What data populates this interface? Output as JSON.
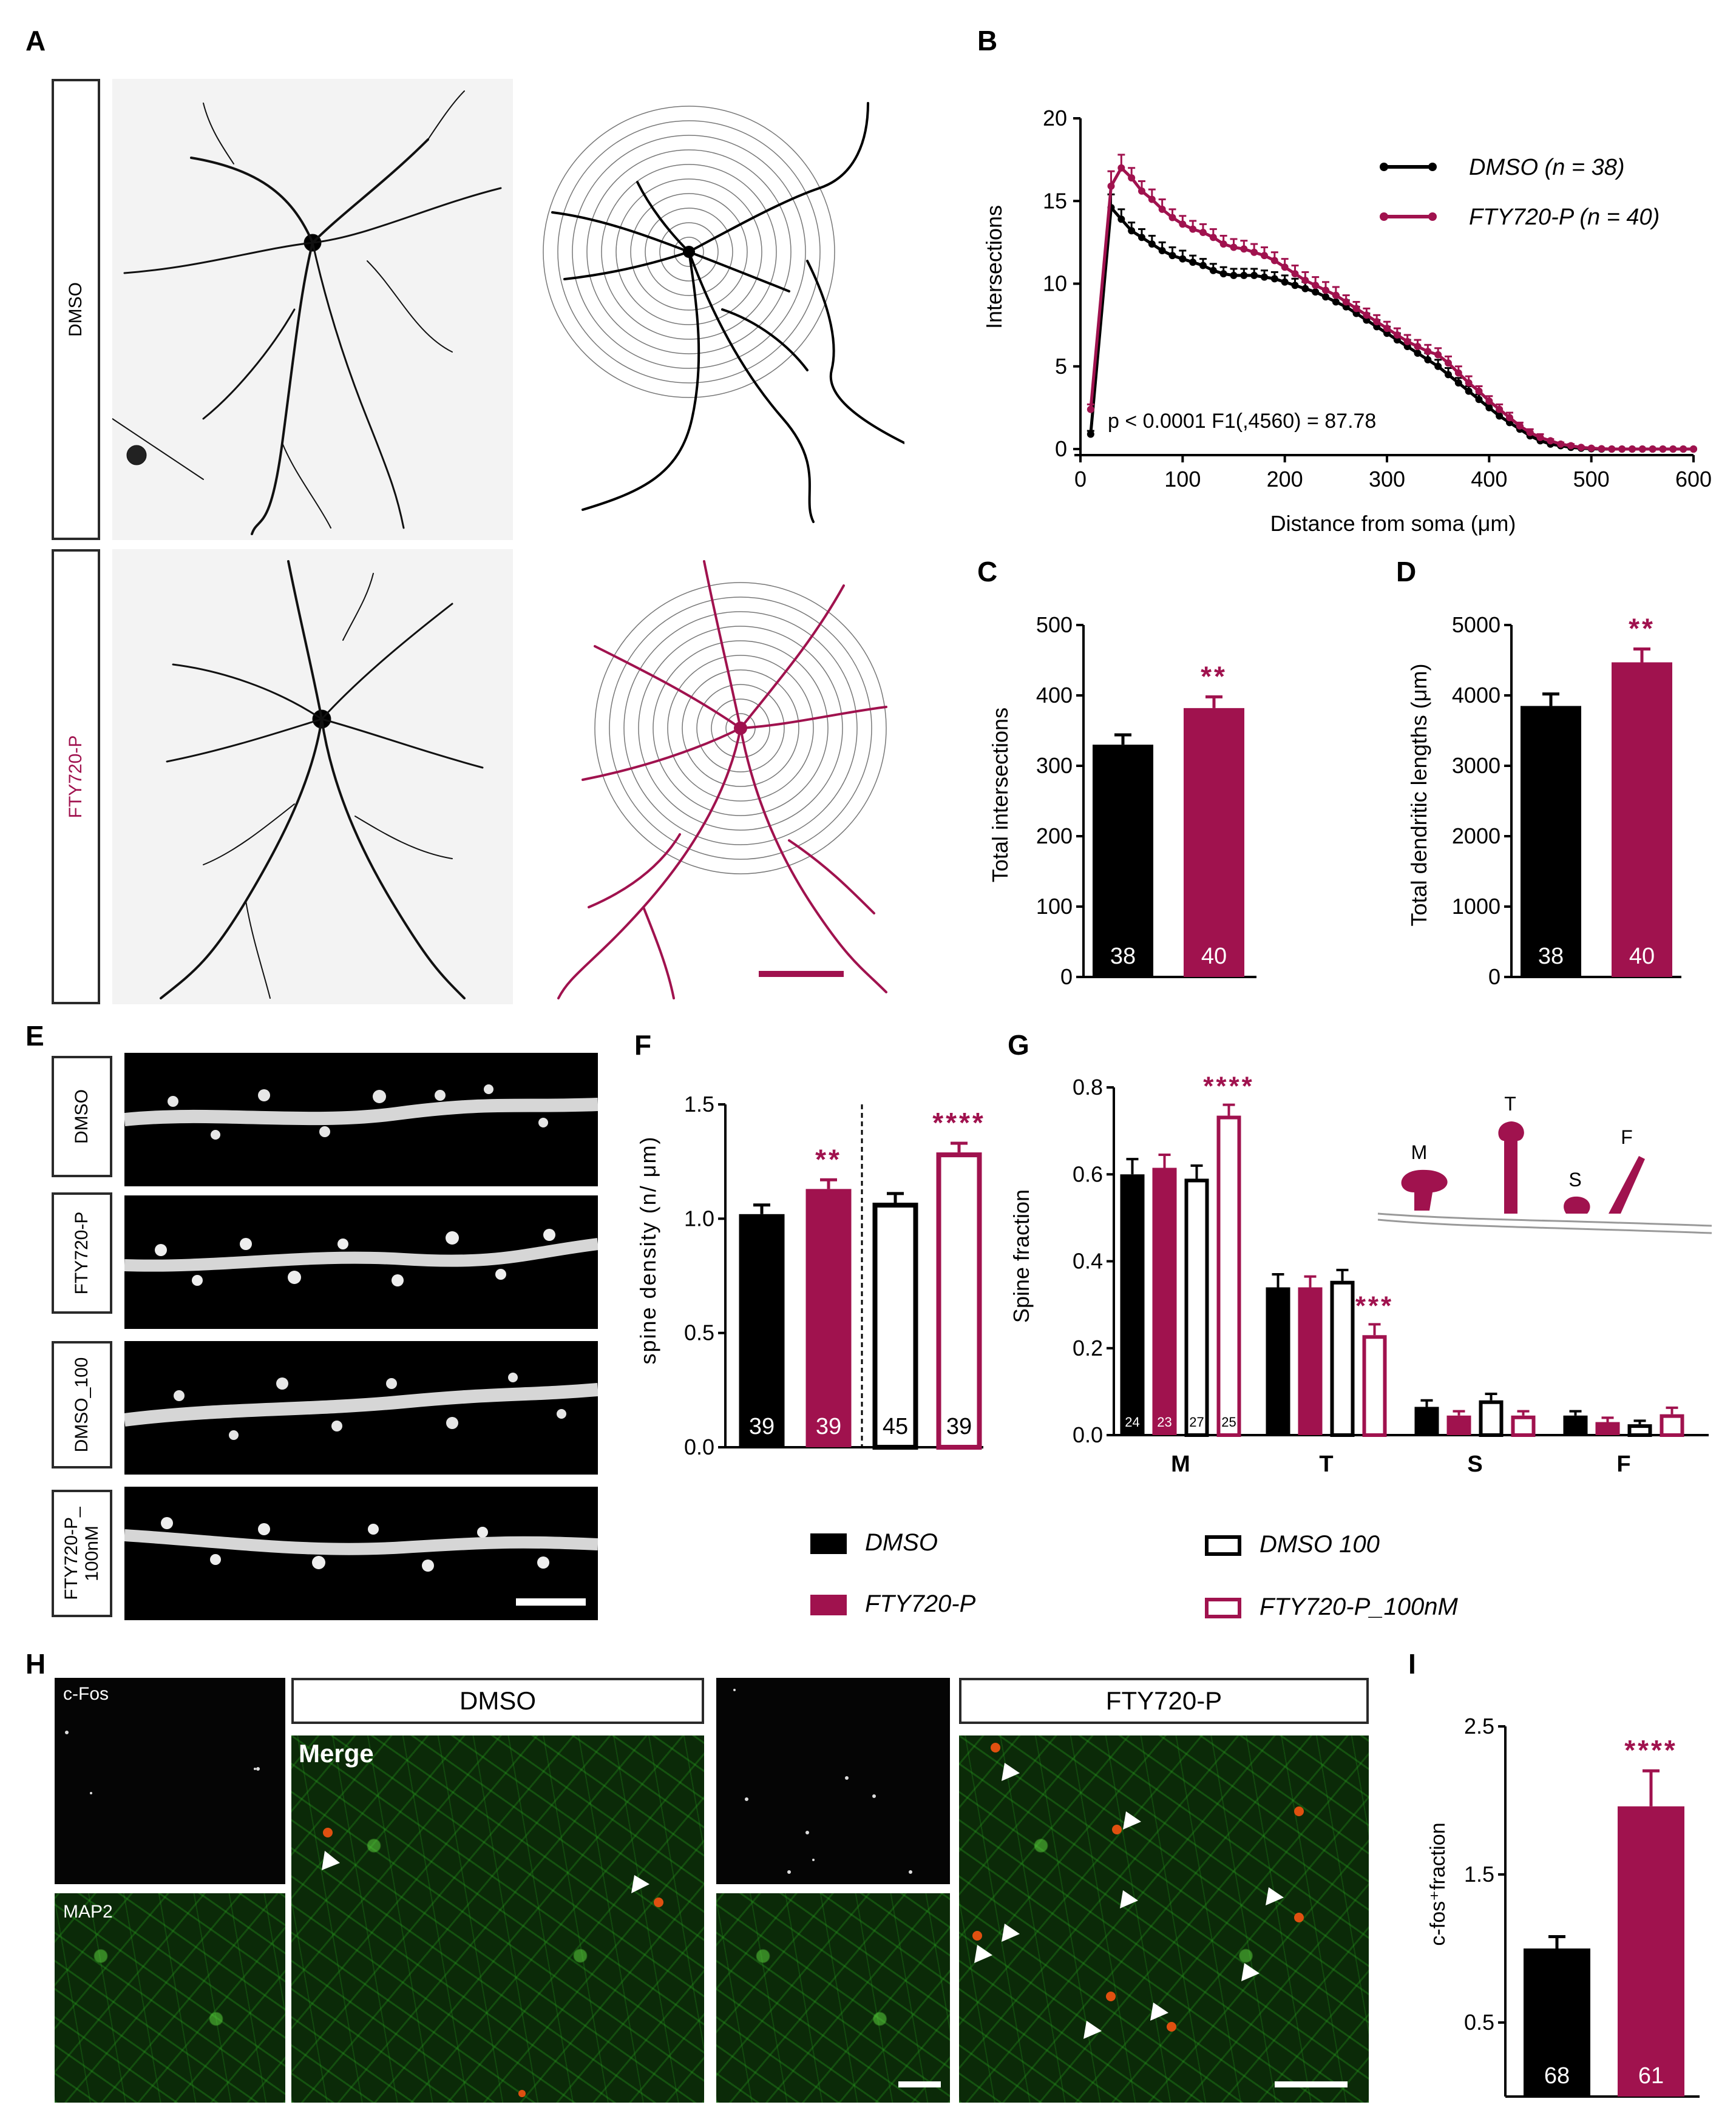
{
  "colors": {
    "dmso": "#000000",
    "fty": "#a0124e",
    "grid": "#cccccc"
  },
  "panels": {
    "A": "A",
    "B": "B",
    "C": "C",
    "D": "D",
    "E": "E",
    "F": "F",
    "G": "G",
    "H": "H",
    "I": "I"
  },
  "panelA": {
    "row_labels": [
      "DMSO",
      "FTY720-P"
    ]
  },
  "panelE": {
    "row_labels": [
      "DMSO",
      "FTY720-P",
      "DMSO_100",
      "FTY720-P_\n100nM"
    ]
  },
  "panelH": {
    "cfos_label": "c-Fos",
    "map2_label": "MAP2",
    "merge_label": "Merge",
    "group_dmso": "DMSO",
    "group_fty": "FTY720-P"
  },
  "legend_bottom": {
    "dmso": "DMSO",
    "fty": "FTY720-P",
    "dmso100": "DMSO 100",
    "fty100": "FTY720-P_100nM"
  },
  "chart_data": [
    {
      "id": "B",
      "type": "line",
      "xlabel": "Distance from soma (μm)",
      "ylabel": "Intersections",
      "xlim": [
        0,
        600
      ],
      "ylim": [
        0,
        20
      ],
      "xticks": [
        0,
        100,
        200,
        300,
        400,
        500,
        600
      ],
      "yticks": [
        0,
        5,
        10,
        15,
        20
      ],
      "annotation": "p < 0.0001  F1(,4560) = 87.78",
      "legend_position": "top-right",
      "x": [
        10,
        30,
        40,
        50,
        60,
        70,
        80,
        90,
        100,
        110,
        120,
        130,
        140,
        150,
        160,
        170,
        180,
        190,
        200,
        210,
        220,
        230,
        240,
        250,
        260,
        270,
        280,
        290,
        300,
        310,
        320,
        330,
        340,
        350,
        360,
        370,
        380,
        390,
        400,
        410,
        420,
        430,
        440,
        450,
        460,
        470,
        480,
        490,
        500,
        510,
        520,
        530,
        540,
        550,
        560,
        570,
        580,
        590,
        600
      ],
      "series": [
        {
          "name": "DMSO (n = 38)",
          "color": "#000000",
          "values": [
            0.9,
            14.6,
            13.9,
            13.2,
            12.8,
            12.4,
            12.0,
            11.7,
            11.5,
            11.3,
            11.1,
            10.8,
            10.6,
            10.5,
            10.5,
            10.5,
            10.4,
            10.3,
            10.1,
            9.9,
            9.7,
            9.5,
            9.2,
            8.9,
            8.6,
            8.2,
            7.8,
            7.4,
            7.0,
            6.6,
            6.2,
            5.8,
            5.4,
            5.0,
            4.5,
            4.0,
            3.5,
            3.0,
            2.5,
            2.0,
            1.6,
            1.2,
            0.8,
            0.5,
            0.3,
            0.2,
            0.1,
            0.05,
            0.02,
            0,
            0,
            0,
            0,
            0,
            0,
            0,
            0,
            0,
            0
          ],
          "errors": [
            0.2,
            0.8,
            0.6,
            0.5,
            0.5,
            0.5,
            0.5,
            0.5,
            0.5,
            0.4,
            0.4,
            0.4,
            0.4,
            0.4,
            0.4,
            0.4,
            0.4,
            0.4,
            0.4,
            0.4,
            0.4,
            0.4,
            0.4,
            0.4,
            0.4,
            0.4,
            0.4,
            0.4,
            0.4,
            0.4,
            0.4,
            0.4,
            0.4,
            0.4,
            0.4,
            0.3,
            0.3,
            0.3,
            0.3,
            0.3,
            0.2,
            0.2,
            0.2,
            0.1,
            0.1,
            0.1,
            0.05,
            0.05,
            0.02,
            0,
            0,
            0,
            0,
            0,
            0,
            0,
            0,
            0,
            0
          ]
        },
        {
          "name": "FTY720-P (n = 40)",
          "color": "#a0124e",
          "values": [
            2.4,
            15.9,
            17.0,
            16.4,
            15.6,
            15.1,
            14.5,
            14.0,
            13.6,
            13.3,
            13.1,
            12.8,
            12.4,
            12.2,
            12.1,
            11.9,
            11.7,
            11.4,
            11.0,
            10.6,
            10.2,
            9.9,
            9.6,
            9.3,
            8.9,
            8.5,
            8.1,
            7.7,
            7.3,
            6.9,
            6.5,
            6.2,
            5.9,
            5.7,
            5.2,
            4.6,
            4.0,
            3.5,
            2.9,
            2.4,
            1.9,
            1.4,
            1.0,
            0.7,
            0.5,
            0.3,
            0.2,
            0.1,
            0.05,
            0.02,
            0,
            0,
            0,
            0,
            0,
            0,
            0,
            0,
            0
          ],
          "errors": [
            0.3,
            0.9,
            0.8,
            0.6,
            0.6,
            0.6,
            0.6,
            0.5,
            0.5,
            0.5,
            0.5,
            0.5,
            0.5,
            0.5,
            0.5,
            0.5,
            0.5,
            0.5,
            0.5,
            0.5,
            0.5,
            0.5,
            0.5,
            0.5,
            0.4,
            0.4,
            0.4,
            0.4,
            0.4,
            0.4,
            0.4,
            0.4,
            0.4,
            0.4,
            0.4,
            0.4,
            0.4,
            0.3,
            0.3,
            0.3,
            0.3,
            0.2,
            0.2,
            0.2,
            0.1,
            0.1,
            0.1,
            0.05,
            0.05,
            0.02,
            0,
            0,
            0,
            0,
            0,
            0,
            0,
            0,
            0
          ]
        }
      ]
    },
    {
      "id": "C",
      "type": "bar",
      "ylabel": "Total  intersections",
      "ylim": [
        0,
        500
      ],
      "yticks": [
        0,
        100,
        200,
        300,
        400,
        500
      ],
      "categories": [
        "DMSO",
        "FTY720-P"
      ],
      "values": [
        330,
        382
      ],
      "errors": [
        14,
        16
      ],
      "n_labels": [
        "38",
        "40"
      ],
      "significance": [
        "",
        "**"
      ]
    },
    {
      "id": "D",
      "type": "bar",
      "ylabel": "Total dendritic  lengths (μm)",
      "ylim": [
        0,
        5000
      ],
      "yticks": [
        0,
        1000,
        2000,
        3000,
        4000,
        5000
      ],
      "categories": [
        "DMSO",
        "FTY720-P"
      ],
      "values": [
        3850,
        4470
      ],
      "errors": [
        170,
        190
      ],
      "n_labels": [
        "38",
        "40"
      ],
      "significance": [
        "",
        "**"
      ]
    },
    {
      "id": "F",
      "type": "bar",
      "ylabel": "spine density (n/ μm)",
      "ylim": [
        0,
        1.5
      ],
      "yticks": [
        "0.0",
        "0.5",
        "1.0",
        "1.5"
      ],
      "categories": [
        "DMSO",
        "FTY720-P",
        "DMSO 100",
        "FTY720-P_100nM"
      ],
      "values": [
        1.02,
        1.13,
        1.07,
        1.29
      ],
      "errors": [
        0.04,
        0.04,
        0.04,
        0.04
      ],
      "n_labels": [
        "39",
        "39",
        "45",
        "39"
      ],
      "significance": [
        "",
        "**",
        "",
        "****"
      ]
    },
    {
      "id": "G",
      "type": "bar",
      "ylabel": "Spine fraction",
      "ylim": [
        0,
        0.8
      ],
      "yticks": [
        "0.0",
        "0.2",
        "0.4",
        "0.6",
        "0.8"
      ],
      "categories": [
        "M",
        "T",
        "S",
        "F"
      ],
      "series": [
        {
          "name": "DMSO",
          "values": [
            0.6,
            0.34,
            0.065,
            0.045
          ],
          "errors": [
            0.035,
            0.03,
            0.015,
            0.01
          ]
        },
        {
          "name": "FTY720-P",
          "values": [
            0.615,
            0.34,
            0.045,
            0.03
          ],
          "errors": [
            0.03,
            0.025,
            0.01,
            0.01
          ]
        },
        {
          "name": "DMSO 100",
          "values": [
            0.59,
            0.355,
            0.08,
            0.025
          ],
          "errors": [
            0.03,
            0.025,
            0.015,
            0.008
          ]
        },
        {
          "name": "FTY720-P_100nM",
          "values": [
            0.735,
            0.23,
            0.045,
            0.048
          ],
          "errors": [
            0.025,
            0.025,
            0.01,
            0.015
          ]
        }
      ],
      "n_labels": [
        "24",
        "23",
        "27",
        "25"
      ],
      "significance": {
        "M": "****",
        "T": "***"
      },
      "inset_labels": [
        "M",
        "T",
        "S",
        "F"
      ]
    },
    {
      "id": "I",
      "type": "bar",
      "ylabel": "c-fos⁺fraction",
      "ylim": [
        0,
        2.5
      ],
      "yticks": [
        "0.5",
        "1.5",
        "2.5"
      ],
      "categories": [
        "DMSO",
        "FTY720-P"
      ],
      "values": [
        1.0,
        1.96
      ],
      "errors": [
        0.08,
        0.24
      ],
      "n_labels": [
        "68",
        "61"
      ],
      "significance": [
        "",
        "****"
      ]
    }
  ]
}
